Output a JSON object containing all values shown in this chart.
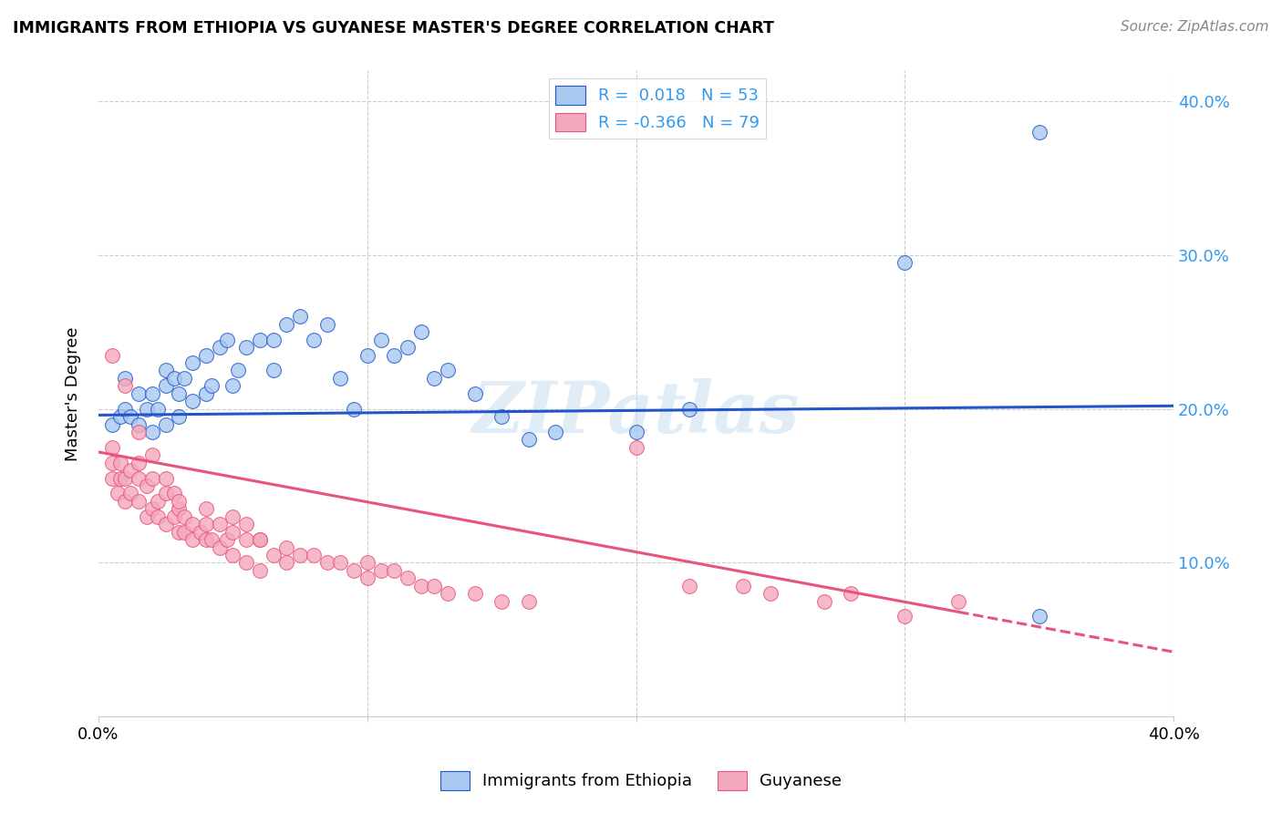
{
  "title": "IMMIGRANTS FROM ETHIOPIA VS GUYANESE MASTER'S DEGREE CORRELATION CHART",
  "source": "Source: ZipAtlas.com",
  "ylabel": "Master's Degree",
  "xlim": [
    0.0,
    0.4
  ],
  "ylim": [
    0.0,
    0.42
  ],
  "ytick_vals": [
    0.1,
    0.2,
    0.3,
    0.4
  ],
  "ytick_labels": [
    "10.0%",
    "20.0%",
    "30.0%",
    "40.0%"
  ],
  "xtick_vals": [
    0.0,
    0.1,
    0.2,
    0.3,
    0.4
  ],
  "xtick_labels": [
    "0.0%",
    "",
    "",
    "",
    "40.0%"
  ],
  "blue_R": "0.018",
  "blue_N": "53",
  "pink_R": "-0.366",
  "pink_N": "79",
  "blue_color": "#A8C8F0",
  "pink_color": "#F4A8BC",
  "trend_blue": "#2255CC",
  "trend_pink": "#E8547A",
  "watermark": "ZIPatlas",
  "legend_label_blue": "Immigrants from Ethiopia",
  "legend_label_pink": "Guyanese",
  "blue_trend_x0": 0.0,
  "blue_trend_y0": 0.196,
  "blue_trend_x1": 0.4,
  "blue_trend_y1": 0.202,
  "pink_trend_x0": 0.0,
  "pink_trend_y0": 0.172,
  "pink_trend_x1": 0.32,
  "pink_trend_y1": 0.068,
  "pink_trend_dash_x0": 0.32,
  "pink_trend_dash_x1": 0.4,
  "blue_scatter_x": [
    0.005,
    0.008,
    0.01,
    0.01,
    0.012,
    0.015,
    0.015,
    0.018,
    0.02,
    0.02,
    0.022,
    0.025,
    0.025,
    0.025,
    0.028,
    0.03,
    0.03,
    0.032,
    0.035,
    0.035,
    0.04,
    0.04,
    0.042,
    0.045,
    0.048,
    0.05,
    0.052,
    0.055,
    0.06,
    0.065,
    0.065,
    0.07,
    0.075,
    0.08,
    0.085,
    0.09,
    0.095,
    0.1,
    0.105,
    0.11,
    0.115,
    0.12,
    0.125,
    0.13,
    0.14,
    0.15,
    0.16,
    0.17,
    0.2,
    0.22,
    0.3,
    0.35,
    0.35
  ],
  "blue_scatter_y": [
    0.19,
    0.195,
    0.2,
    0.22,
    0.195,
    0.19,
    0.21,
    0.2,
    0.185,
    0.21,
    0.2,
    0.19,
    0.215,
    0.225,
    0.22,
    0.195,
    0.21,
    0.22,
    0.205,
    0.23,
    0.21,
    0.235,
    0.215,
    0.24,
    0.245,
    0.215,
    0.225,
    0.24,
    0.245,
    0.225,
    0.245,
    0.255,
    0.26,
    0.245,
    0.255,
    0.22,
    0.2,
    0.235,
    0.245,
    0.235,
    0.24,
    0.25,
    0.22,
    0.225,
    0.21,
    0.195,
    0.18,
    0.185,
    0.185,
    0.2,
    0.295,
    0.38,
    0.065
  ],
  "pink_scatter_x": [
    0.005,
    0.005,
    0.005,
    0.007,
    0.008,
    0.008,
    0.01,
    0.01,
    0.012,
    0.012,
    0.015,
    0.015,
    0.015,
    0.018,
    0.018,
    0.02,
    0.02,
    0.022,
    0.022,
    0.025,
    0.025,
    0.028,
    0.028,
    0.03,
    0.03,
    0.032,
    0.032,
    0.035,
    0.035,
    0.038,
    0.04,
    0.04,
    0.042,
    0.045,
    0.045,
    0.048,
    0.05,
    0.05,
    0.055,
    0.055,
    0.06,
    0.06,
    0.065,
    0.07,
    0.075,
    0.08,
    0.085,
    0.09,
    0.095,
    0.1,
    0.1,
    0.105,
    0.11,
    0.115,
    0.12,
    0.125,
    0.13,
    0.14,
    0.15,
    0.16,
    0.2,
    0.22,
    0.24,
    0.25,
    0.27,
    0.28,
    0.3,
    0.32,
    0.005,
    0.01,
    0.015,
    0.02,
    0.025,
    0.03,
    0.04,
    0.05,
    0.055,
    0.06,
    0.07
  ],
  "pink_scatter_y": [
    0.155,
    0.165,
    0.175,
    0.145,
    0.155,
    0.165,
    0.14,
    0.155,
    0.145,
    0.16,
    0.14,
    0.155,
    0.165,
    0.13,
    0.15,
    0.135,
    0.155,
    0.13,
    0.14,
    0.125,
    0.145,
    0.13,
    0.145,
    0.12,
    0.135,
    0.12,
    0.13,
    0.115,
    0.125,
    0.12,
    0.115,
    0.125,
    0.115,
    0.11,
    0.125,
    0.115,
    0.105,
    0.12,
    0.1,
    0.115,
    0.095,
    0.115,
    0.105,
    0.1,
    0.105,
    0.105,
    0.1,
    0.1,
    0.095,
    0.09,
    0.1,
    0.095,
    0.095,
    0.09,
    0.085,
    0.085,
    0.08,
    0.08,
    0.075,
    0.075,
    0.175,
    0.085,
    0.085,
    0.08,
    0.075,
    0.08,
    0.065,
    0.075,
    0.235,
    0.215,
    0.185,
    0.17,
    0.155,
    0.14,
    0.135,
    0.13,
    0.125,
    0.115,
    0.11
  ]
}
